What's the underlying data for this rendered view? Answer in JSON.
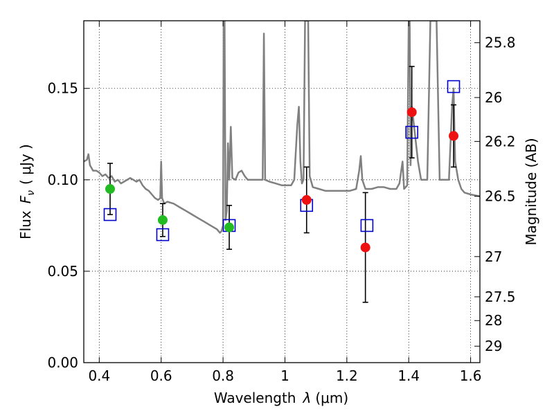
{
  "chart_data": {
    "type": "scatter",
    "title": "",
    "xlabel_prefix": "Wavelength",
    "xlabel_symbol": "λ",
    "xlabel_unit": "(μm)",
    "ylabel_prefix": "Flux",
    "ylabel_symbol": "F",
    "ylabel_subscript": "ν",
    "ylabel_unit": "( μJy )",
    "y2label": "Magnitude (AB)",
    "xlim": [
      0.35,
      1.63
    ],
    "ylim": [
      0.0,
      0.187
    ],
    "grid": true,
    "x_ticks": [
      0.4,
      0.6,
      0.8,
      1.0,
      1.2,
      1.4,
      1.6
    ],
    "x_tick_labels": [
      "0.4",
      "0.6",
      "0.8",
      "1",
      "1.2",
      "1.4",
      "1.6"
    ],
    "y_ticks": [
      0.0,
      0.05,
      0.1,
      0.15
    ],
    "y_tick_labels": [
      "0.00",
      "0.05",
      "0.10",
      "0.15"
    ],
    "y2_ticks": [
      {
        "label": "25.8",
        "flux": 0.175
      },
      {
        "label": "26",
        "flux": 0.145
      },
      {
        "label": "26.2",
        "flux": 0.121
      },
      {
        "label": "26.5",
        "flux": 0.091
      },
      {
        "label": "27",
        "flux": 0.058
      },
      {
        "label": "27.5",
        "flux": 0.036
      },
      {
        "label": "28",
        "flux": 0.023
      },
      {
        "label": "29",
        "flux": 0.009
      }
    ],
    "colors": {
      "spectrum": "#808080",
      "model": "#0000cc",
      "optical": "#22bb22",
      "infrared": "#ee1111",
      "errorbar": "#000000"
    },
    "series": [
      {
        "name": "model spectrum",
        "style": "line",
        "points": [
          [
            0.35,
            0.11
          ],
          [
            0.36,
            0.111
          ],
          [
            0.365,
            0.114
          ],
          [
            0.37,
            0.108
          ],
          [
            0.38,
            0.105
          ],
          [
            0.39,
            0.105
          ],
          [
            0.4,
            0.104
          ],
          [
            0.41,
            0.102
          ],
          [
            0.42,
            0.103
          ],
          [
            0.43,
            0.101
          ],
          [
            0.44,
            0.102
          ],
          [
            0.45,
            0.099
          ],
          [
            0.46,
            0.1
          ],
          [
            0.47,
            0.098
          ],
          [
            0.48,
            0.099
          ],
          [
            0.49,
            0.1
          ],
          [
            0.5,
            0.101
          ],
          [
            0.51,
            0.1
          ],
          [
            0.52,
            0.099
          ],
          [
            0.53,
            0.1
          ],
          [
            0.54,
            0.097
          ],
          [
            0.55,
            0.095
          ],
          [
            0.56,
            0.094
          ],
          [
            0.57,
            0.092
          ],
          [
            0.58,
            0.09
          ],
          [
            0.59,
            0.089
          ],
          [
            0.597,
            0.09
          ],
          [
            0.6,
            0.11
          ],
          [
            0.603,
            0.09
          ],
          [
            0.61,
            0.087
          ],
          [
            0.62,
            0.088
          ],
          [
            0.64,
            0.087
          ],
          [
            0.66,
            0.085
          ],
          [
            0.68,
            0.083
          ],
          [
            0.7,
            0.081
          ],
          [
            0.72,
            0.079
          ],
          [
            0.74,
            0.077
          ],
          [
            0.76,
            0.075
          ],
          [
            0.78,
            0.073
          ],
          [
            0.79,
            0.071
          ],
          [
            0.795,
            0.072
          ],
          [
            0.8,
            0.075
          ],
          [
            0.802,
            0.187
          ],
          [
            0.805,
            0.187
          ],
          [
            0.808,
            0.078
          ],
          [
            0.812,
            0.083
          ],
          [
            0.816,
            0.12
          ],
          [
            0.82,
            0.1
          ],
          [
            0.825,
            0.129
          ],
          [
            0.83,
            0.101
          ],
          [
            0.84,
            0.1
          ],
          [
            0.85,
            0.104
          ],
          [
            0.86,
            0.105
          ],
          [
            0.87,
            0.102
          ],
          [
            0.88,
            0.1
          ],
          [
            0.9,
            0.1
          ],
          [
            0.92,
            0.1
          ],
          [
            0.928,
            0.1
          ],
          [
            0.932,
            0.18
          ],
          [
            0.936,
            0.1
          ],
          [
            0.95,
            0.099
          ],
          [
            0.97,
            0.098
          ],
          [
            0.99,
            0.097
          ],
          [
            1.0,
            0.097
          ],
          [
            1.02,
            0.097
          ],
          [
            1.03,
            0.1
          ],
          [
            1.04,
            0.13
          ],
          [
            1.045,
            0.14
          ],
          [
            1.05,
            0.11
          ],
          [
            1.055,
            0.098
          ],
          [
            1.06,
            0.1
          ],
          [
            1.065,
            0.187
          ],
          [
            1.07,
            0.187
          ],
          [
            1.075,
            0.187
          ],
          [
            1.08,
            0.102
          ],
          [
            1.09,
            0.096
          ],
          [
            1.11,
            0.095
          ],
          [
            1.13,
            0.094
          ],
          [
            1.15,
            0.094
          ],
          [
            1.17,
            0.094
          ],
          [
            1.19,
            0.094
          ],
          [
            1.21,
            0.094
          ],
          [
            1.23,
            0.095
          ],
          [
            1.24,
            0.105
          ],
          [
            1.245,
            0.113
          ],
          [
            1.25,
            0.1
          ],
          [
            1.26,
            0.095
          ],
          [
            1.28,
            0.095
          ],
          [
            1.3,
            0.096
          ],
          [
            1.32,
            0.096
          ],
          [
            1.34,
            0.095
          ],
          [
            1.36,
            0.095
          ],
          [
            1.37,
            0.098
          ],
          [
            1.38,
            0.11
          ],
          [
            1.385,
            0.095
          ],
          [
            1.395,
            0.097
          ],
          [
            1.4,
            0.187
          ],
          [
            1.403,
            0.187
          ],
          [
            1.406,
            0.108
          ],
          [
            1.41,
            0.14
          ],
          [
            1.42,
            0.125
          ],
          [
            1.43,
            0.11
          ],
          [
            1.44,
            0.1
          ],
          [
            1.45,
            0.1
          ],
          [
            1.46,
            0.1
          ],
          [
            1.47,
            0.187
          ],
          [
            1.48,
            0.187
          ],
          [
            1.49,
            0.187
          ],
          [
            1.5,
            0.1
          ],
          [
            1.52,
            0.1
          ],
          [
            1.53,
            0.1
          ],
          [
            1.54,
            0.14
          ],
          [
            1.545,
            0.15
          ],
          [
            1.55,
            0.11
          ],
          [
            1.56,
            0.1
          ],
          [
            1.57,
            0.095
          ],
          [
            1.58,
            0.093
          ],
          [
            1.6,
            0.092
          ],
          [
            1.63,
            0.091
          ]
        ]
      },
      {
        "name": "model photometry",
        "style": "open-square",
        "points": [
          [
            0.435,
            0.081
          ],
          [
            0.605,
            0.07
          ],
          [
            0.82,
            0.075
          ],
          [
            1.07,
            0.086
          ],
          [
            1.265,
            0.075
          ],
          [
            1.41,
            0.126
          ],
          [
            1.545,
            0.151
          ]
        ]
      },
      {
        "name": "observed optical",
        "style": "filled-circle",
        "points": [
          [
            0.435,
            0.095,
            0.014
          ],
          [
            0.605,
            0.078,
            0.009
          ],
          [
            0.82,
            0.074,
            0.012
          ]
        ]
      },
      {
        "name": "observed infrared",
        "style": "filled-circle",
        "points": [
          [
            1.07,
            0.089,
            0.018
          ],
          [
            1.26,
            0.063,
            0.03
          ],
          [
            1.41,
            0.137,
            0.025
          ],
          [
            1.545,
            0.124,
            0.017
          ]
        ]
      }
    ]
  }
}
